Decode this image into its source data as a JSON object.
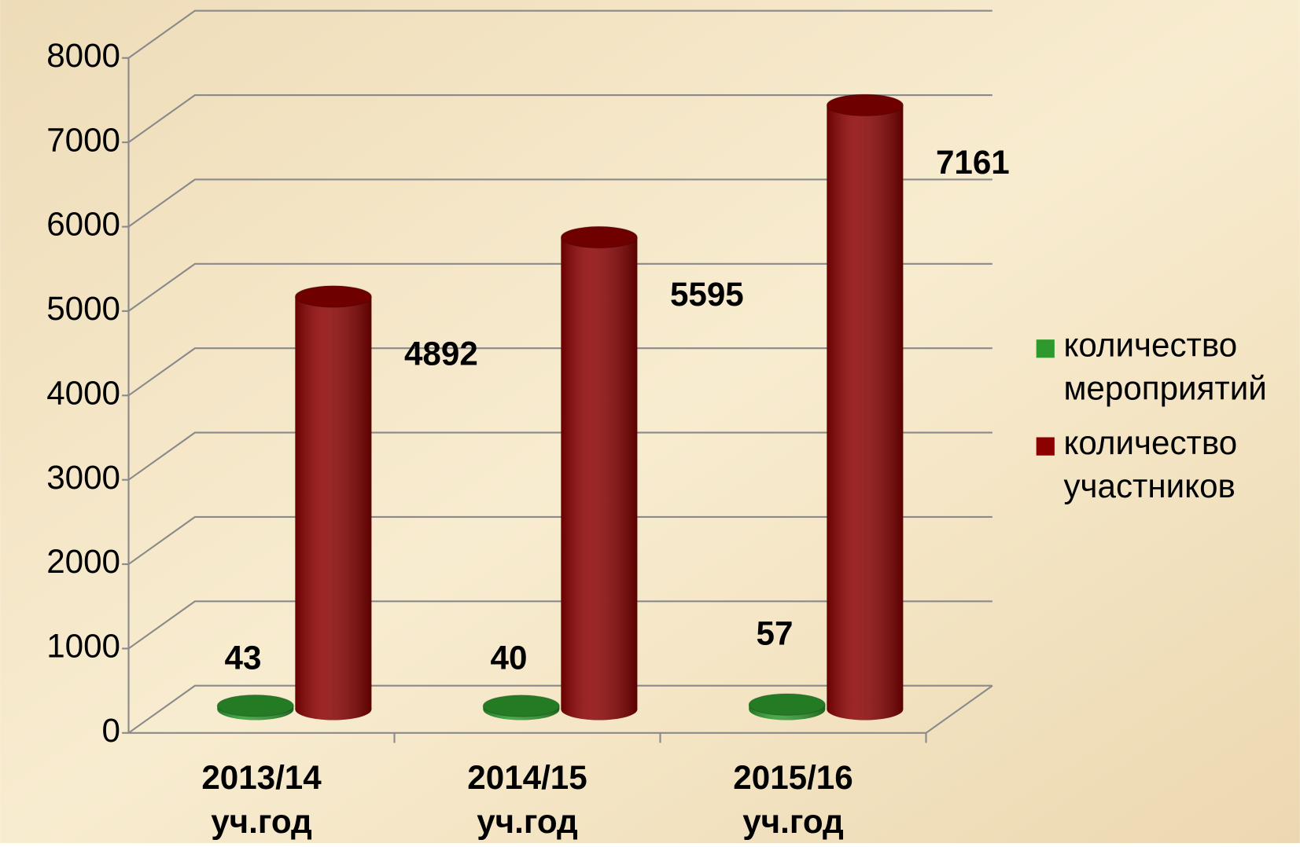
{
  "chart_data": {
    "type": "cylinder-bar",
    "categories": [
      "2013/14 уч.год",
      "2014/15 уч.год",
      "2015/16 уч.год"
    ],
    "series": [
      {
        "name": "количество мероприятий",
        "color": "#2e9a2e",
        "values": [
          43,
          40,
          57
        ]
      },
      {
        "name": "количество участников",
        "color": "#8b0000",
        "values": [
          4892,
          5595,
          7161
        ]
      }
    ],
    "ylim": [
      0,
      8000
    ],
    "yticks": [
      0,
      1000,
      2000,
      3000,
      4000,
      5000,
      6000,
      7000,
      8000
    ],
    "grid": true,
    "legend": "right"
  }
}
